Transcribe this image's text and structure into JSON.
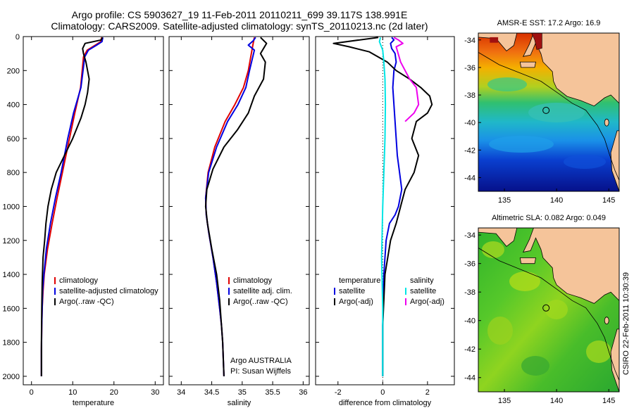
{
  "header": {
    "line1": "Argo profile: CS 5903627_19 11-Feb-2011 20110211_699 39.117S 138.991E",
    "line2": "Climatology: CARS2009. Satellite-adjusted climatology: synTS_20110213.nc (2d later)"
  },
  "side_stamp": "CSIRO 22-Feb-2011 10:30:39",
  "colors": {
    "climatology": "#e00000",
    "satellite": "#0000e0",
    "argo": "#000000",
    "sal_satellite": "#00e5e5",
    "sal_argo": "#ee00ee",
    "land": "#f5c49a"
  },
  "chart_data": [
    {
      "type": "line",
      "name": "temperature",
      "xlabel": "temperature",
      "xlim": [
        -2,
        32
      ],
      "ylim": [
        2050,
        0
      ],
      "xticks": [
        0,
        10,
        20,
        30
      ],
      "xtick_labels": [
        "0",
        "10",
        "20",
        "30"
      ],
      "yticks": [
        0,
        200,
        400,
        600,
        800,
        1000,
        1200,
        1400,
        1600,
        1800,
        2000
      ],
      "ytick_labels": [
        "0",
        "200",
        "400",
        "600",
        "800",
        "1000",
        "1200",
        "1400",
        "1600",
        "1800",
        "2000"
      ],
      "legend": [
        "climatology",
        "satellite-adjusted climatology",
        "Argo(..raw -QC)"
      ],
      "legend_position": "lower-right",
      "series": [
        {
          "name": "climatology",
          "color": "#e00000",
          "x": [
            17.0,
            16.8,
            15.5,
            13.5,
            12.6,
            12.3,
            11.9,
            10.5,
            9.2,
            7.5,
            6.2,
            5.0,
            3.9,
            3.1,
            2.8,
            2.6,
            2.5,
            2.4,
            2.4
          ],
          "y": [
            5,
            30,
            50,
            80,
            120,
            200,
            300,
            450,
            600,
            800,
            950,
            1100,
            1250,
            1400,
            1500,
            1600,
            1700,
            1850,
            2000
          ]
        },
        {
          "name": "satellite-adjusted climatology",
          "color": "#0000e0",
          "x": [
            17.3,
            17.1,
            15.8,
            13.8,
            12.9,
            12.5,
            12.0,
            10.2,
            8.8,
            7.2,
            5.8,
            4.6,
            3.6,
            3.0,
            2.7,
            2.6,
            2.5,
            2.4,
            2.4
          ],
          "y": [
            5,
            30,
            50,
            80,
            120,
            200,
            300,
            450,
            600,
            800,
            950,
            1100,
            1250,
            1400,
            1500,
            1600,
            1700,
            1850,
            2000
          ]
        },
        {
          "name": "Argo(..raw -QC)",
          "color": "#000000",
          "x": [
            17.2,
            16.9,
            13.0,
            12.4,
            12.6,
            13.2,
            14.0,
            13.6,
            13.0,
            12.0,
            10.0,
            8.0,
            6.0,
            4.8,
            4.0,
            3.5,
            3.2,
            2.8,
            2.6,
            2.5,
            2.4,
            2.4
          ],
          "y": [
            5,
            20,
            40,
            70,
            100,
            150,
            250,
            330,
            400,
            480,
            600,
            700,
            800,
            900,
            1000,
            1100,
            1200,
            1300,
            1450,
            1600,
            1800,
            2000
          ]
        }
      ]
    },
    {
      "type": "line",
      "name": "salinity",
      "xlabel": "salinity",
      "xlim": [
        33.8,
        36.1
      ],
      "ylim": [
        2050,
        0
      ],
      "xticks": [
        34,
        34.5,
        35,
        35.5,
        36
      ],
      "xtick_labels": [
        "34",
        "34.5",
        "35",
        "35.5",
        "36"
      ],
      "legend": [
        "climatology",
        "satellite adj. clim.",
        "Argo(..raw -QC)"
      ],
      "legend_position": "lower-right",
      "annotation": [
        "Argo AUSTRALIA",
        "PI: Susan Wijffels"
      ],
      "series": [
        {
          "name": "climatology",
          "color": "#e00000",
          "x": [
            35.2,
            35.18,
            35.15,
            35.1,
            35.02,
            34.88,
            34.72,
            34.55,
            34.44,
            34.4,
            34.41,
            34.45,
            34.52,
            34.58,
            34.63,
            34.66,
            34.68,
            34.69,
            34.7
          ],
          "y": [
            5,
            40,
            100,
            200,
            300,
            400,
            500,
            650,
            800,
            950,
            1050,
            1150,
            1300,
            1450,
            1600,
            1700,
            1800,
            1900,
            2000
          ]
        },
        {
          "name": "satellite adj. clim.",
          "color": "#0000e0",
          "x": [
            35.22,
            35.18,
            35.1,
            35.2,
            35.12,
            35.06,
            34.93,
            34.76,
            34.58,
            34.45,
            34.4,
            34.41,
            34.45,
            34.52,
            34.58,
            34.63,
            34.66,
            34.68,
            34.69,
            34.7
          ],
          "y": [
            5,
            25,
            50,
            80,
            200,
            300,
            400,
            500,
            650,
            800,
            950,
            1050,
            1150,
            1300,
            1450,
            1600,
            1700,
            1800,
            1900,
            2000
          ]
        },
        {
          "name": "Argo(..raw -QC)",
          "color": "#000000",
          "x": [
            35.3,
            35.4,
            35.3,
            35.38,
            35.35,
            35.2,
            35.1,
            34.92,
            34.7,
            34.52,
            34.42,
            34.4,
            34.43,
            34.5,
            34.58,
            34.63,
            34.66,
            34.68,
            34.69,
            34.7
          ],
          "y": [
            5,
            40,
            100,
            150,
            250,
            350,
            450,
            550,
            650,
            780,
            900,
            1000,
            1100,
            1250,
            1400,
            1550,
            1700,
            1800,
            1900,
            2000
          ]
        }
      ]
    },
    {
      "type": "line",
      "name": "difference from climatology",
      "xlabel": "difference from climatology",
      "xlim": [
        -3,
        3.2
      ],
      "ylim": [
        2050,
        0
      ],
      "xticks": [
        -2,
        0,
        2
      ],
      "xtick_labels": [
        "-2",
        "0",
        "2"
      ],
      "legend": [
        "temperature",
        "satellite",
        "Argo(-adj)",
        "salinity",
        "satellite",
        "Argo(-adj)"
      ],
      "legend_position": "middle",
      "series": [
        {
          "name": "temperature satellite",
          "color": "#0000e0",
          "x": [
            0.4,
            0.5,
            0.35,
            0.4,
            0.55,
            0.6,
            0.5,
            0.45,
            0.5,
            0.55,
            0.6,
            0.65,
            0.75,
            0.85,
            0.7,
            0.55,
            0.3,
            0.15,
            0.05,
            0.0,
            0.0
          ],
          "y": [
            5,
            20,
            40,
            70,
            100,
            150,
            200,
            300,
            400,
            500,
            600,
            700,
            800,
            900,
            1000,
            1050,
            1100,
            1200,
            1400,
            1700,
            2000
          ]
        },
        {
          "name": "temperature Argo(-adj)",
          "color": "#000000",
          "x": [
            -0.2,
            -2.2,
            -1.5,
            -0.6,
            0.2,
            0.6,
            1.2,
            1.7,
            2.1,
            2.2,
            2.0,
            1.5,
            1.3,
            1.6,
            1.4,
            1.0,
            0.8,
            0.6,
            0.35,
            0.1,
            0.0,
            0.0
          ],
          "y": [
            5,
            40,
            60,
            90,
            150,
            200,
            250,
            300,
            350,
            400,
            450,
            500,
            600,
            700,
            800,
            900,
            1000,
            1100,
            1200,
            1400,
            1700,
            2000
          ]
        },
        {
          "name": "salinity satellite",
          "color": "#00e5e5",
          "x": [
            -0.1,
            -0.15,
            0.0,
            0.05,
            0.1,
            0.12,
            0.1,
            0.05,
            0.0,
            -0.05,
            0.0,
            0.0,
            0.0
          ],
          "y": [
            5,
            30,
            80,
            150,
            250,
            400,
            600,
            800,
            1000,
            1300,
            1600,
            1800,
            2000
          ]
        },
        {
          "name": "salinity Argo(-adj)",
          "color": "#ee00ee",
          "x": [
            0.5,
            0.7,
            0.9,
            0.6,
            0.8,
            1.2,
            1.5,
            1.6,
            1.4,
            1.0
          ],
          "y": [
            5,
            20,
            40,
            60,
            150,
            250,
            300,
            400,
            450,
            500
          ]
        }
      ]
    }
  ],
  "maps": [
    {
      "title": "AMSR-E SST: 17.2 Argo: 16.9",
      "xticks": [
        "135",
        "140",
        "145"
      ],
      "yticks": [
        "-34",
        "-36",
        "-38",
        "-40",
        "-42",
        "-44"
      ],
      "xlim": [
        132.5,
        146
      ],
      "ylim": [
        -45,
        -33.5
      ],
      "argo_marker": [
        138.991,
        -39.117
      ]
    },
    {
      "title": "Altimetric SLA: 0.082 Argo: 0.049",
      "xticks": [
        "135",
        "140",
        "145"
      ],
      "yticks": [
        "-34",
        "-36",
        "-38",
        "-40",
        "-42",
        "-44"
      ],
      "xlim": [
        132.5,
        146
      ],
      "ylim": [
        -45,
        -33.5
      ],
      "argo_marker": [
        138.991,
        -39.117
      ]
    }
  ]
}
